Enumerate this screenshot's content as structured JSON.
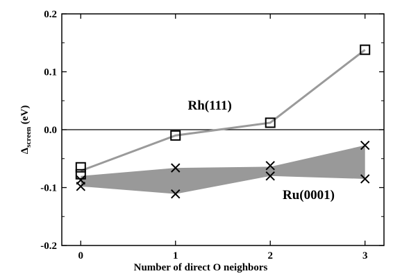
{
  "chart_data": {
    "type": "scatter",
    "xlabel": "Number of direct O neighbors",
    "ylabel_main": "Δ",
    "ylabel_sub": "screen",
    "ylabel_unit": " (eV)",
    "xlim": [
      -0.2,
      3.2
    ],
    "ylim": [
      -0.2,
      0.2
    ],
    "xticks": [
      0,
      1,
      2,
      3
    ],
    "xtick_labels": [
      "0",
      "1",
      "2",
      "3"
    ],
    "yticks": [
      -0.2,
      -0.1,
      0.0,
      0.1,
      0.2
    ],
    "ytick_labels": [
      "-0.2",
      "-0.1",
      "0.0",
      "0.1",
      "0.2"
    ],
    "zero_line": true,
    "grid": false,
    "series": [
      {
        "name": "Rh(111)",
        "marker": "square",
        "line_color": "#9a9a9a",
        "x": [
          0,
          0,
          1,
          2,
          3
        ],
        "y": [
          -0.065,
          -0.077,
          -0.01,
          0.012,
          0.138
        ],
        "line_x": [
          0,
          1,
          2,
          3
        ],
        "line_y": [
          -0.071,
          -0.01,
          0.012,
          0.138
        ]
      },
      {
        "name": "Ru(0001)",
        "marker": "x",
        "fill_color": "#999999",
        "x": [
          0,
          0,
          1,
          1,
          2,
          2,
          3,
          3
        ],
        "y": [
          -0.087,
          -0.098,
          -0.066,
          -0.111,
          -0.062,
          -0.08,
          -0.027,
          -0.085
        ],
        "band_upper": [
          -0.08,
          -0.066,
          -0.064,
          -0.027
        ],
        "band_lower": [
          -0.098,
          -0.111,
          -0.08,
          -0.085
        ]
      }
    ],
    "annotations": [
      {
        "text": "Rh(111)",
        "x": 1.13,
        "y": 0.035
      },
      {
        "text": "Ru(0001)",
        "x": 2.13,
        "y": -0.12
      }
    ]
  }
}
